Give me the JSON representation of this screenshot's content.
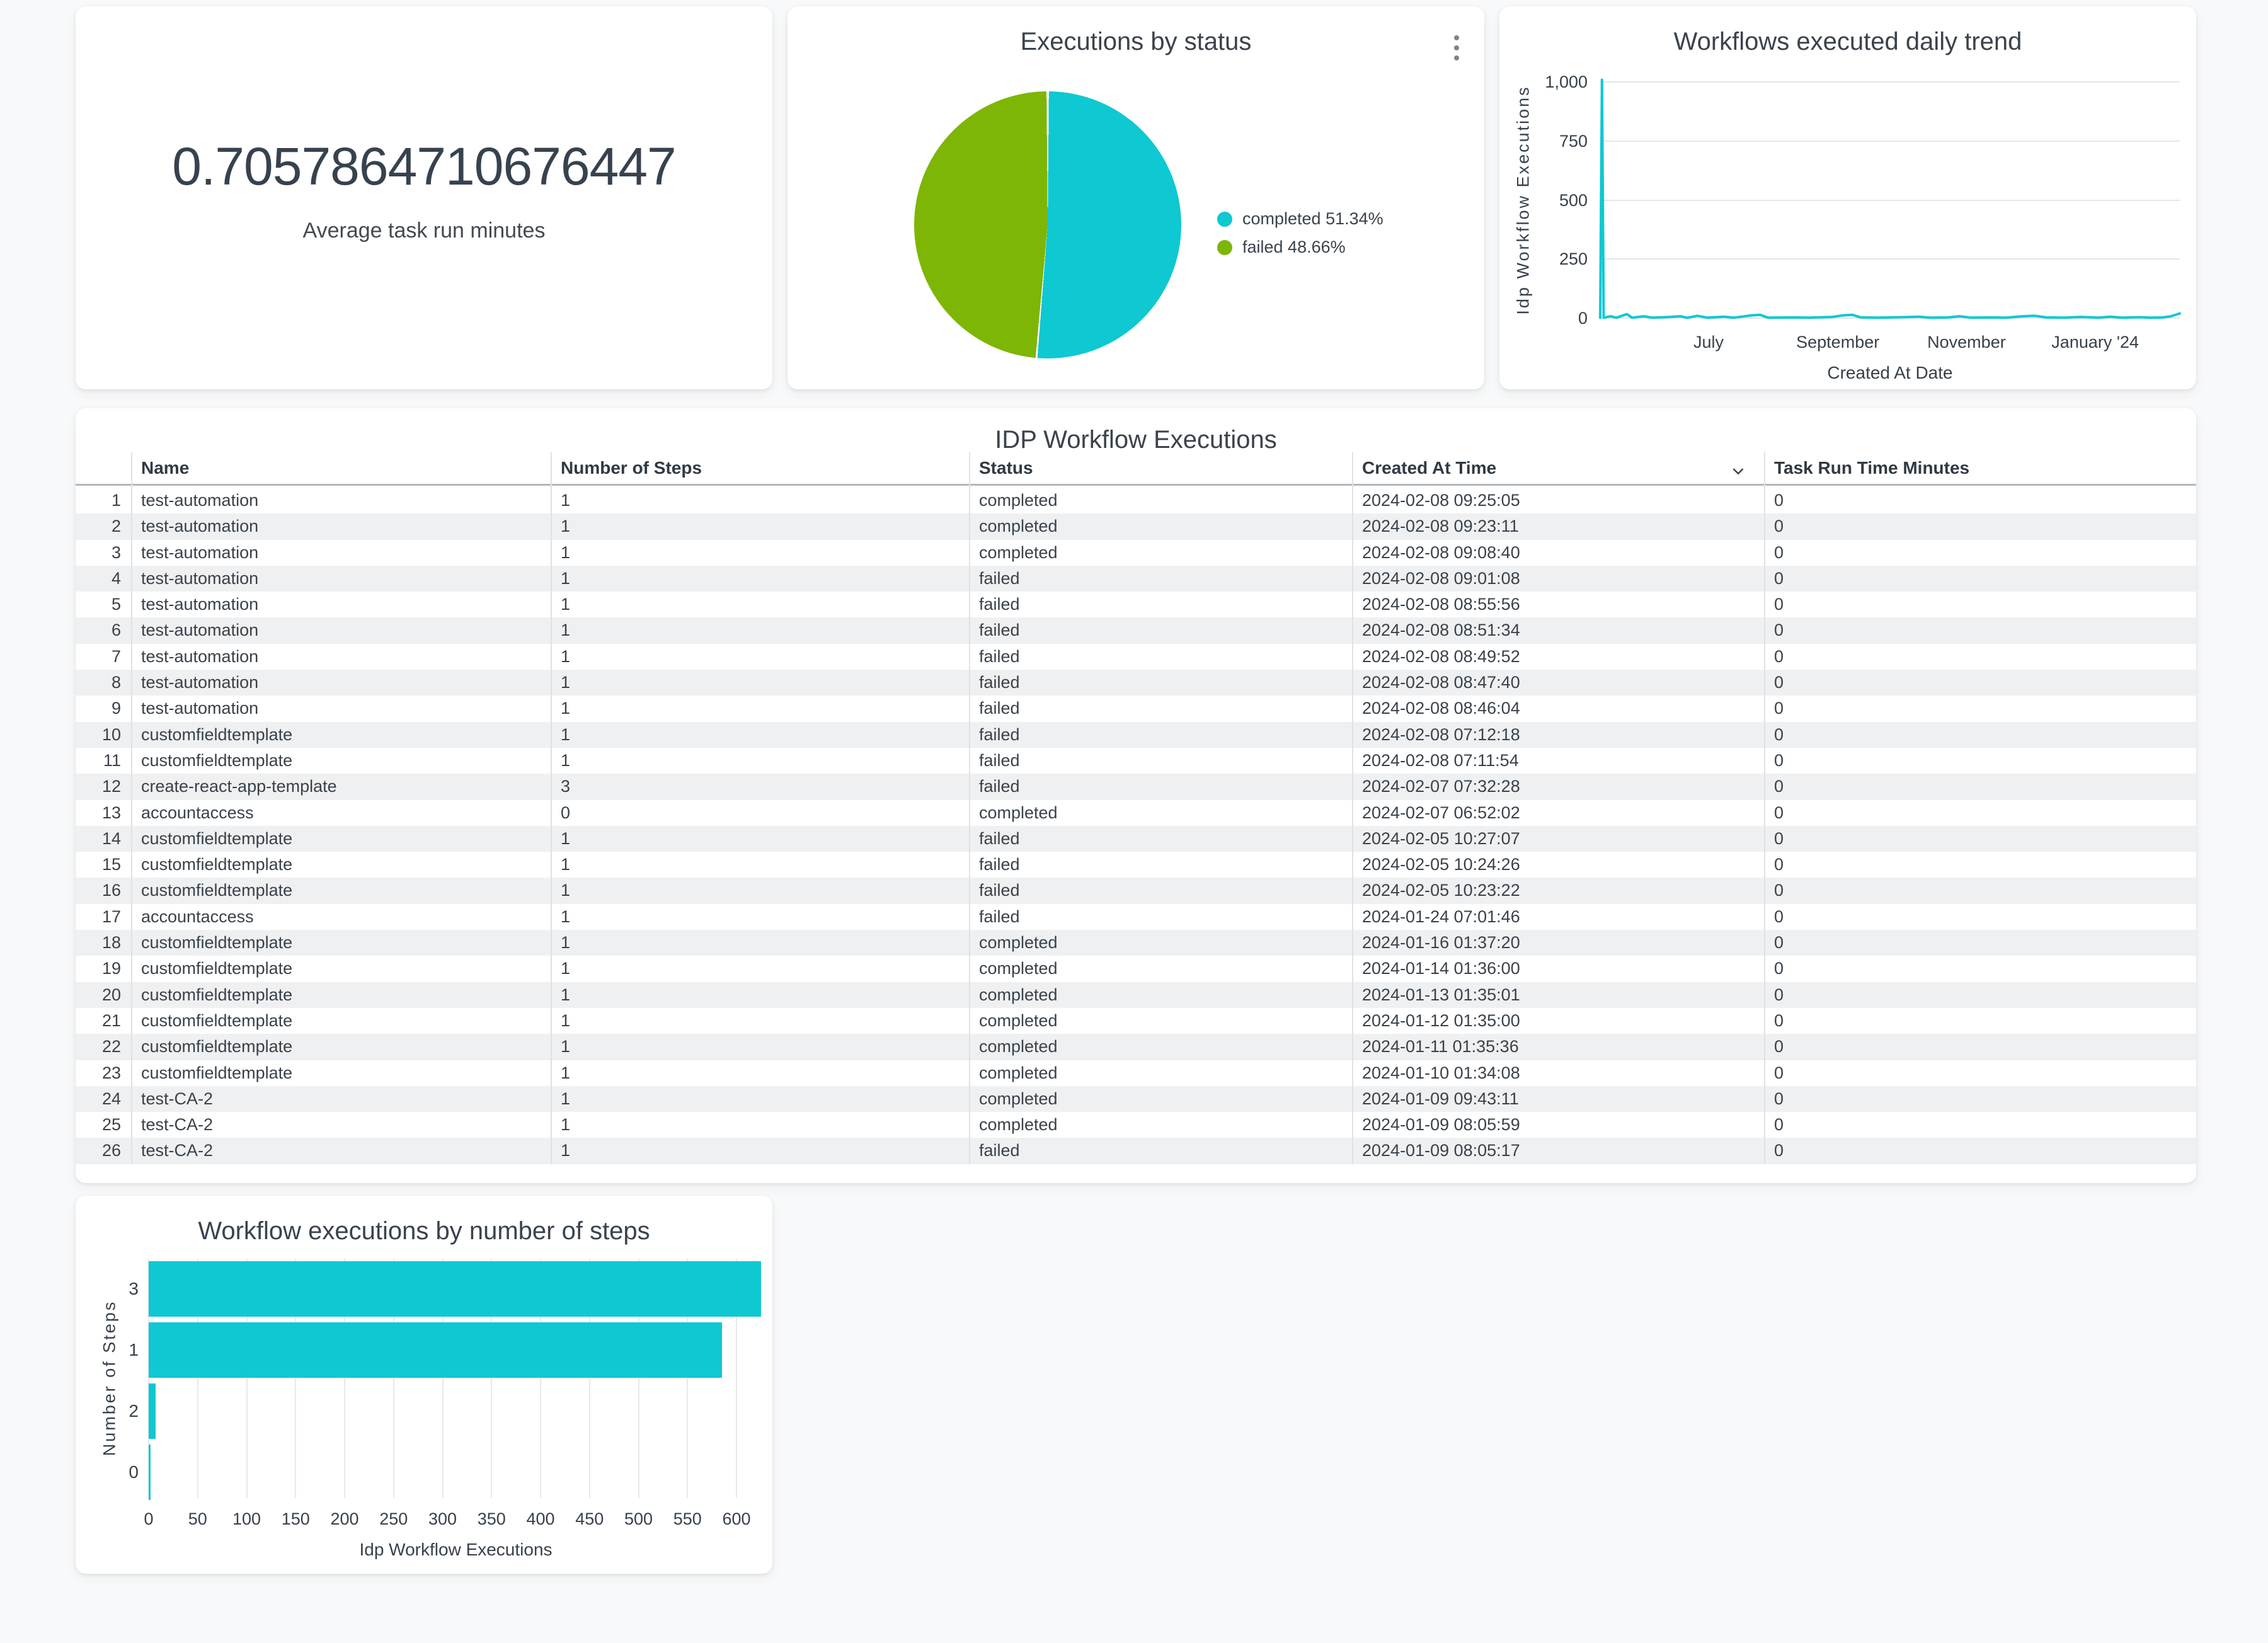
{
  "page": {
    "background": "#F8F9FA"
  },
  "colors": {
    "cyan": "#0EC8D2",
    "green": "#7DB605",
    "ink": "#3A434D",
    "grid": "#E4E6E9"
  },
  "scorecard": {
    "value": "0.7057864710676447",
    "label": "Average task run minutes"
  },
  "pie_card": {
    "title": "Executions by status",
    "menu_icon": "kebab-menu-icon"
  },
  "line_card": {
    "title": "Workflows executed daily trend"
  },
  "bar_card": {
    "title": "Workflow executions by number of steps"
  },
  "table": {
    "title": "IDP Workflow Executions",
    "columns": [
      "Name",
      "Number of Steps",
      "Status",
      "Created At Time",
      "Task Run Time Minutes"
    ],
    "sorted_column": "Created At Time",
    "sort_direction": "descending",
    "rows": [
      [
        "1",
        "test-automation",
        "1",
        "completed",
        "2024-02-08 09:25:05",
        "0"
      ],
      [
        "2",
        "test-automation",
        "1",
        "completed",
        "2024-02-08 09:23:11",
        "0"
      ],
      [
        "3",
        "test-automation",
        "1",
        "completed",
        "2024-02-08 09:08:40",
        "0"
      ],
      [
        "4",
        "test-automation",
        "1",
        "failed",
        "2024-02-08 09:01:08",
        "0"
      ],
      [
        "5",
        "test-automation",
        "1",
        "failed",
        "2024-02-08 08:55:56",
        "0"
      ],
      [
        "6",
        "test-automation",
        "1",
        "failed",
        "2024-02-08 08:51:34",
        "0"
      ],
      [
        "7",
        "test-automation",
        "1",
        "failed",
        "2024-02-08 08:49:52",
        "0"
      ],
      [
        "8",
        "test-automation",
        "1",
        "failed",
        "2024-02-08 08:47:40",
        "0"
      ],
      [
        "9",
        "test-automation",
        "1",
        "failed",
        "2024-02-08 08:46:04",
        "0"
      ],
      [
        "10",
        "customfieldtemplate",
        "1",
        "failed",
        "2024-02-08 07:12:18",
        "0"
      ],
      [
        "11",
        "customfieldtemplate",
        "1",
        "failed",
        "2024-02-08 07:11:54",
        "0"
      ],
      [
        "12",
        "create-react-app-template",
        "3",
        "failed",
        "2024-02-07 07:32:28",
        "0"
      ],
      [
        "13",
        "accountaccess",
        "0",
        "completed",
        "2024-02-07 06:52:02",
        "0"
      ],
      [
        "14",
        "customfieldtemplate",
        "1",
        "failed",
        "2024-02-05 10:27:07",
        "0"
      ],
      [
        "15",
        "customfieldtemplate",
        "1",
        "failed",
        "2024-02-05 10:24:26",
        "0"
      ],
      [
        "16",
        "customfieldtemplate",
        "1",
        "failed",
        "2024-02-05 10:23:22",
        "0"
      ],
      [
        "17",
        "accountaccess",
        "1",
        "failed",
        "2024-01-24 07:01:46",
        "0"
      ],
      [
        "18",
        "customfieldtemplate",
        "1",
        "completed",
        "2024-01-16 01:37:20",
        "0"
      ],
      [
        "19",
        "customfieldtemplate",
        "1",
        "completed",
        "2024-01-14 01:36:00",
        "0"
      ],
      [
        "20",
        "customfieldtemplate",
        "1",
        "completed",
        "2024-01-13 01:35:01",
        "0"
      ],
      [
        "21",
        "customfieldtemplate",
        "1",
        "completed",
        "2024-01-12 01:35:00",
        "0"
      ],
      [
        "22",
        "customfieldtemplate",
        "1",
        "completed",
        "2024-01-11 01:35:36",
        "0"
      ],
      [
        "23",
        "customfieldtemplate",
        "1",
        "completed",
        "2024-01-10 01:34:08",
        "0"
      ],
      [
        "24",
        "test-CA-2",
        "1",
        "completed",
        "2024-01-09 09:43:11",
        "0"
      ],
      [
        "25",
        "test-CA-2",
        "1",
        "completed",
        "2024-01-09 08:05:59",
        "0"
      ],
      [
        "26",
        "test-CA-2",
        "1",
        "failed",
        "2024-01-09 08:05:17",
        "0"
      ]
    ]
  },
  "chart_data": [
    {
      "id": "executions_by_status",
      "type": "pie",
      "title": "Executions by status",
      "slices": [
        {
          "label": "completed",
          "pct": 51.34,
          "color": "#0EC8D2"
        },
        {
          "label": "failed",
          "pct": 48.66,
          "color": "#7DB605"
        }
      ],
      "legend": [
        "completed 51.34%",
        "failed 48.66%"
      ],
      "legend_position": "right",
      "start_angle_deg": 0,
      "direction": "clockwise"
    },
    {
      "id": "daily_trend",
      "type": "line",
      "title": "Workflows executed daily trend",
      "xlabel": "Created At Date",
      "ylabel": "Idp Workflow Executions",
      "ylim": [
        0,
        1000
      ],
      "grid": true,
      "line_color": "#0EC8D2",
      "yticks": [
        {
          "v": 0,
          "label": "0"
        },
        {
          "v": 250,
          "label": "250"
        },
        {
          "v": 500,
          "label": "500"
        },
        {
          "v": 750,
          "label": "750"
        },
        {
          "v": 1000,
          "label": "1,000"
        }
      ],
      "xticks": [
        {
          "f": 0.187,
          "label": "July"
        },
        {
          "f": 0.41,
          "label": "September"
        },
        {
          "f": 0.632,
          "label": "November"
        },
        {
          "f": 0.854,
          "label": "January '24"
        }
      ],
      "x_range_note": "daily points from May 2023 to Feb 2024, x as fraction of axis",
      "points": [
        [
          0.0,
          2
        ],
        [
          0.003,
          1009
        ],
        [
          0.006,
          2
        ],
        [
          0.018,
          8
        ],
        [
          0.028,
          2
        ],
        [
          0.046,
          17
        ],
        [
          0.055,
          2
        ],
        [
          0.075,
          8
        ],
        [
          0.09,
          2
        ],
        [
          0.12,
          5
        ],
        [
          0.138,
          8
        ],
        [
          0.15,
          2
        ],
        [
          0.168,
          10
        ],
        [
          0.185,
          2
        ],
        [
          0.214,
          6
        ],
        [
          0.23,
          2
        ],
        [
          0.262,
          12
        ],
        [
          0.276,
          14
        ],
        [
          0.29,
          2
        ],
        [
          0.33,
          3
        ],
        [
          0.36,
          2
        ],
        [
          0.4,
          5
        ],
        [
          0.42,
          12
        ],
        [
          0.435,
          14
        ],
        [
          0.45,
          3
        ],
        [
          0.48,
          2
        ],
        [
          0.52,
          4
        ],
        [
          0.55,
          6
        ],
        [
          0.57,
          2
        ],
        [
          0.6,
          3
        ],
        [
          0.62,
          8
        ],
        [
          0.64,
          2
        ],
        [
          0.67,
          3
        ],
        [
          0.7,
          2
        ],
        [
          0.73,
          8
        ],
        [
          0.75,
          10
        ],
        [
          0.77,
          3
        ],
        [
          0.8,
          2
        ],
        [
          0.83,
          5
        ],
        [
          0.86,
          2
        ],
        [
          0.88,
          6
        ],
        [
          0.9,
          2
        ],
        [
          0.93,
          4
        ],
        [
          0.95,
          2
        ],
        [
          0.97,
          3
        ],
        [
          0.985,
          8
        ],
        [
          1.0,
          20
        ]
      ]
    },
    {
      "id": "steps_bar",
      "type": "bar",
      "title": "Workflow executions by number of steps",
      "orientation": "horizontal",
      "xlabel": "Idp Workflow Executions",
      "ylabel": "Number of Steps",
      "categories": [
        "3",
        "1",
        "2",
        "0"
      ],
      "values": [
        625,
        585,
        7,
        2
      ],
      "xlim": [
        0,
        650
      ],
      "grid": true,
      "bar_color": "#0EC8D2",
      "xticks": [
        0,
        50,
        100,
        150,
        200,
        250,
        300,
        350,
        400,
        450,
        500,
        550,
        600
      ]
    }
  ]
}
